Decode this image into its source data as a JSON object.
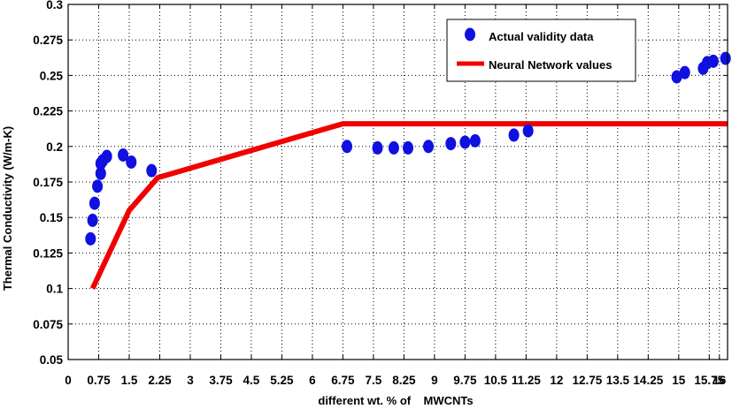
{
  "chart_data": {
    "type": "scatter",
    "xlabel": "different wt. % of    MWCNTs",
    "ylabel": "Thermal Conductivity (W/m-K)",
    "xlim": [
      0,
      16.2
    ],
    "ylim": [
      0.05,
      0.3
    ],
    "xticks": [
      "0",
      "0.75",
      "1.5",
      "2.25",
      "3",
      "3.75",
      "4.5",
      "5.25",
      "6",
      "6.75",
      "7.5",
      "8.25",
      "9",
      "9.75",
      "10.5",
      "11.25",
      "12",
      "12.75",
      "13.5",
      "14.25",
      "15",
      "15.75",
      "16"
    ],
    "yticks": [
      "0.05",
      "0.075",
      "0.1",
      "0.125",
      "0.15",
      "0.175",
      "0.2",
      "0.225",
      "0.25",
      "0.275",
      "0.3"
    ],
    "grid": true,
    "legend_position": "top-right",
    "series": [
      {
        "name": "Actual validity data",
        "kind": "scatter",
        "color": "#1010e0",
        "x": [
          0.55,
          0.6,
          0.65,
          0.72,
          0.8,
          0.8,
          0.85,
          0.95,
          1.35,
          1.55,
          2.05,
          6.85,
          7.6,
          8.0,
          8.35,
          8.85,
          9.4,
          9.75,
          10.0,
          10.95,
          11.3,
          14.95,
          15.15,
          15.6,
          15.7,
          15.85,
          16.15
        ],
        "y": [
          0.135,
          0.148,
          0.16,
          0.172,
          0.181,
          0.188,
          0.19,
          0.193,
          0.194,
          0.189,
          0.183,
          0.2,
          0.199,
          0.199,
          0.199,
          0.2,
          0.202,
          0.203,
          0.204,
          0.208,
          0.211,
          0.249,
          0.252,
          0.255,
          0.259,
          0.26,
          0.262
        ]
      },
      {
        "name": "Neural Network values",
        "kind": "line",
        "color": "#f00000",
        "x": [
          0.6,
          1.5,
          2.2,
          6.75,
          16.2
        ],
        "y": [
          0.1,
          0.155,
          0.178,
          0.216,
          0.216
        ]
      }
    ]
  }
}
